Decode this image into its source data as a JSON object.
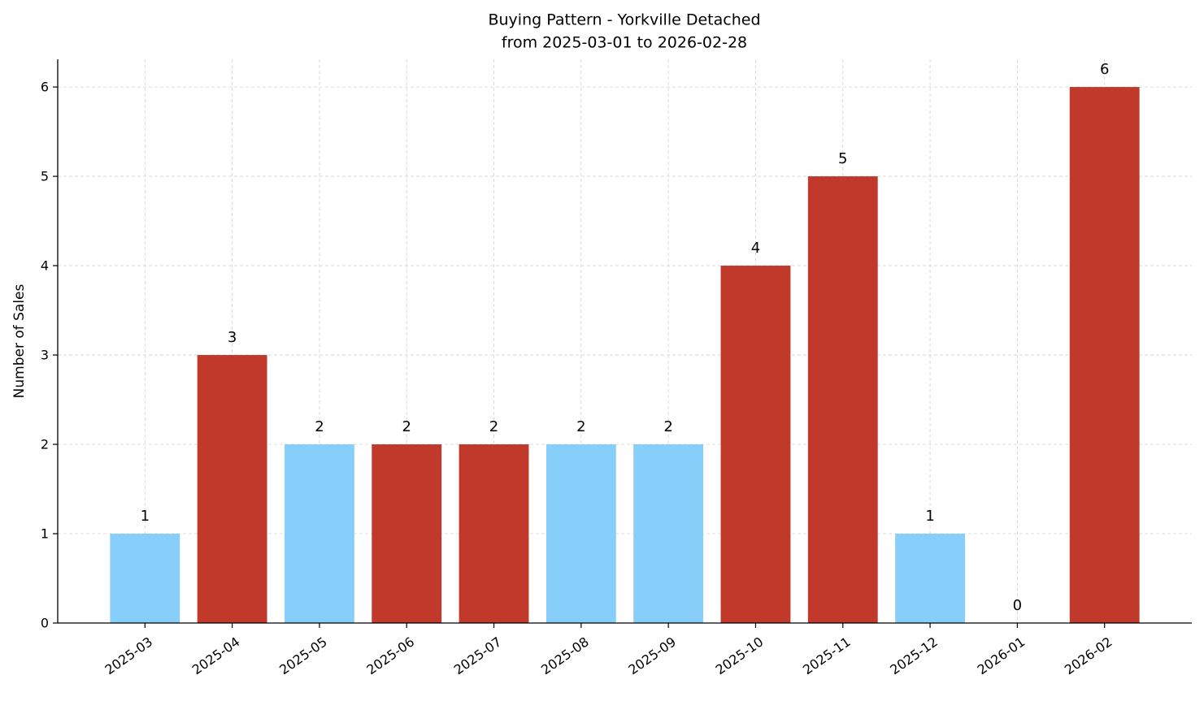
{
  "chart_data": {
    "type": "bar",
    "title": "Buying Pattern - Yorkville Detached",
    "subtitle": "from 2025-03-01 to 2026-02-28",
    "y_label": "Number of Sales",
    "categories": [
      "2025-03",
      "2025-04",
      "2025-05",
      "2025-06",
      "2025-07",
      "2025-08",
      "2025-09",
      "2025-10",
      "2025-11",
      "2025-12",
      "2026-01",
      "2026-02"
    ],
    "values": [
      1,
      3,
      2,
      2,
      2,
      2,
      2,
      4,
      5,
      1,
      0,
      6
    ],
    "colors": [
      "#87cefa",
      "#c0392b",
      "#87cefa",
      "#c0392b",
      "#c0392b",
      "#87cefa",
      "#87cefa",
      "#c0392b",
      "#c0392b",
      "#87cefa",
      "#87cefa",
      "#c0392b"
    ],
    "ylim": [
      0,
      6.31
    ],
    "yticks": [
      0,
      1,
      2,
      3,
      4,
      5,
      6
    ],
    "grid": true
  }
}
